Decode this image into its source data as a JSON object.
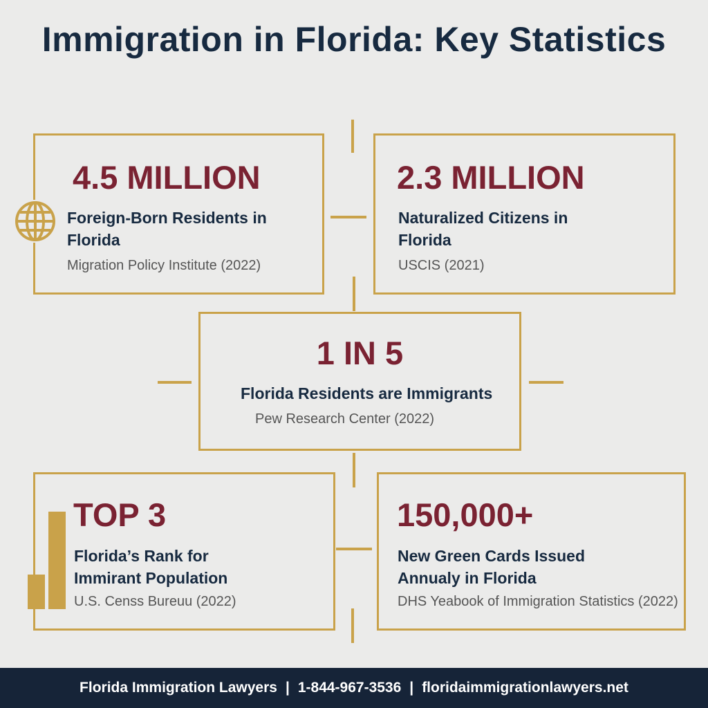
{
  "title": "Immigration in Florida: Key Statistics",
  "colors": {
    "accent_gold": "#c9a24a",
    "stat_maroon": "#7a2232",
    "navy": "#172a40",
    "footer_bg": "#162438",
    "background": "#ebebea"
  },
  "cards": [
    {
      "stat": "4.5 MILLION",
      "label": "Foreign-Born Residents in Florida",
      "source": "Migration Policy Institute (2022)",
      "icon": "globe-icon"
    },
    {
      "stat": "2.3 MILLION",
      "label": "Naturalized Citizens in Florida",
      "source": "USCIS (2021)"
    },
    {
      "stat": "1 IN 5",
      "label": "Florida Residents are Immigrants",
      "source": "Pew Research Center (2022)"
    },
    {
      "stat": "TOP 3",
      "label": "Florida’s Rank for Immirant Population",
      "source": "U.S. Censs Bureuu (2022)",
      "icon": "bar-chart-icon"
    },
    {
      "stat": "150,000+",
      "label": "New Green Cards Issued Annualy in Florida",
      "source": "DHS Yeabook of Immigration Statistics (2022)"
    }
  ],
  "footer": {
    "firm": "Florida Immigration Lawyers",
    "phone": "1-844-967-3536",
    "website": "floridaimmigrationlawyers.net"
  }
}
